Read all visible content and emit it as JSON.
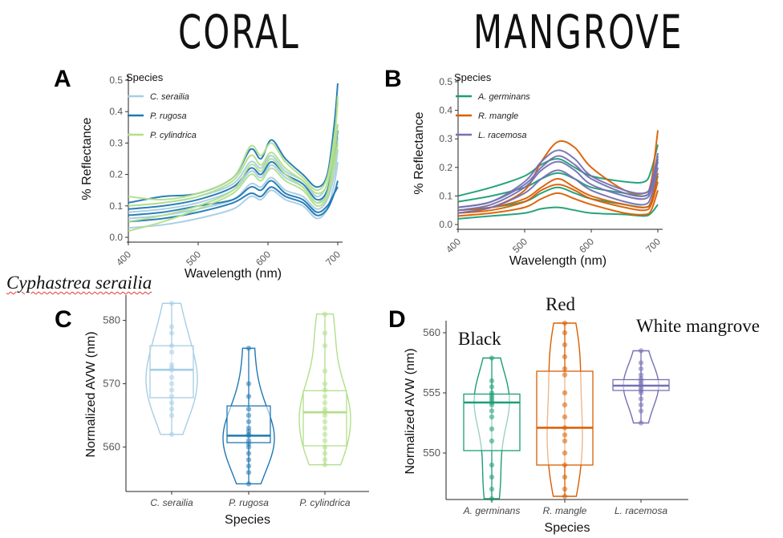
{
  "headings": {
    "coral": "CORAL",
    "mangrove": "MANGROVE"
  },
  "annotations": {
    "species_name": "Cyphastrea serailia",
    "black": "Black",
    "red": "Red",
    "white_mangrove": "White mangrove"
  },
  "chart_data": [
    {
      "id": "A",
      "panel_label": "A",
      "type": "line",
      "title": "",
      "xlabel": "Wavelength (nm)",
      "ylabel": "% Reflectance",
      "xlim": [
        400,
        700
      ],
      "ylim": [
        0,
        0.5
      ],
      "x_ticks": [
        "400",
        "500",
        "600",
        "700"
      ],
      "y_ticks": [
        "0.0",
        "0.1",
        "0.2",
        "0.3",
        "0.4",
        "0.5"
      ],
      "legend_title": "Species",
      "legend_position": "top-left",
      "x": [
        400,
        450,
        500,
        550,
        575,
        590,
        605,
        625,
        650,
        670,
        685,
        695,
        700
      ],
      "series": [
        {
          "name": "C. serailia",
          "color": "#a6cee3",
          "values": [
            0.06,
            0.07,
            0.09,
            0.12,
            0.17,
            0.16,
            0.19,
            0.15,
            0.13,
            0.09,
            0.12,
            0.2,
            0.28
          ]
        },
        {
          "name": "C. serailia",
          "color": "#a6cee3",
          "values": [
            0.03,
            0.04,
            0.06,
            0.09,
            0.13,
            0.12,
            0.15,
            0.12,
            0.1,
            0.06,
            0.09,
            0.17,
            0.24
          ]
        },
        {
          "name": "C. serailia",
          "color": "#a6cee3",
          "values": [
            0.1,
            0.11,
            0.13,
            0.17,
            0.24,
            0.22,
            0.26,
            0.21,
            0.18,
            0.13,
            0.17,
            0.28,
            0.36
          ]
        },
        {
          "name": "C. serailia",
          "color": "#a6cee3",
          "values": [
            0.08,
            0.09,
            0.11,
            0.15,
            0.21,
            0.19,
            0.23,
            0.19,
            0.16,
            0.11,
            0.15,
            0.24,
            0.32
          ]
        },
        {
          "name": "P. rugosa",
          "color": "#1f78b4",
          "values": [
            0.07,
            0.08,
            0.1,
            0.12,
            0.16,
            0.15,
            0.18,
            0.14,
            0.12,
            0.08,
            0.1,
            0.14,
            0.16
          ]
        },
        {
          "name": "P. rugosa",
          "color": "#1f78b4",
          "values": [
            0.11,
            0.13,
            0.14,
            0.19,
            0.28,
            0.25,
            0.31,
            0.25,
            0.2,
            0.16,
            0.2,
            0.36,
            0.49
          ]
        },
        {
          "name": "P. rugosa",
          "color": "#1f78b4",
          "values": [
            0.05,
            0.06,
            0.08,
            0.11,
            0.14,
            0.13,
            0.16,
            0.13,
            0.11,
            0.07,
            0.09,
            0.14,
            0.18
          ]
        },
        {
          "name": "P. rugosa",
          "color": "#1f78b4",
          "values": [
            0.09,
            0.1,
            0.12,
            0.16,
            0.22,
            0.2,
            0.24,
            0.2,
            0.17,
            0.12,
            0.15,
            0.26,
            0.34
          ]
        },
        {
          "name": "P. cylindrica",
          "color": "#b2df8a",
          "values": [
            0.13,
            0.12,
            0.14,
            0.19,
            0.29,
            0.26,
            0.3,
            0.24,
            0.19,
            0.15,
            0.19,
            0.32,
            0.43
          ]
        },
        {
          "name": "P. cylindrica",
          "color": "#b2df8a",
          "values": [
            0.02,
            0.05,
            0.09,
            0.14,
            0.2,
            0.18,
            0.22,
            0.18,
            0.15,
            0.1,
            0.13,
            0.23,
            0.3
          ]
        },
        {
          "name": "P. cylindrica",
          "color": "#b2df8a",
          "values": [
            0.1,
            0.11,
            0.13,
            0.18,
            0.26,
            0.23,
            0.27,
            0.22,
            0.18,
            0.14,
            0.17,
            0.3,
            0.45
          ]
        },
        {
          "name": "P. cylindrica",
          "color": "#b2df8a",
          "values": [
            0.05,
            0.07,
            0.1,
            0.15,
            0.23,
            0.21,
            0.25,
            0.2,
            0.16,
            0.11,
            0.14,
            0.26,
            0.36
          ]
        }
      ],
      "legend": [
        {
          "name": "C. serailia",
          "color": "#a6cee3"
        },
        {
          "name": "P. rugosa",
          "color": "#1f78b4"
        },
        {
          "name": "P. cylindrica",
          "color": "#b2df8a"
        }
      ]
    },
    {
      "id": "B",
      "panel_label": "B",
      "type": "line",
      "title": "",
      "xlabel": "Wavelength (nm)",
      "ylabel": "% Reflectance",
      "xlim": [
        400,
        700
      ],
      "ylim": [
        0,
        0.5
      ],
      "x_ticks": [
        "400",
        "500",
        "600",
        "700"
      ],
      "y_ticks": [
        "0.0",
        "0.1",
        "0.2",
        "0.3",
        "0.4",
        "0.5"
      ],
      "legend_title": "Species",
      "legend_position": "top-left",
      "x": [
        400,
        450,
        500,
        525,
        550,
        575,
        600,
        650,
        680,
        690,
        700
      ],
      "series": [
        {
          "name": "A. germinans",
          "color": "#1b9e77",
          "values": [
            0.1,
            0.13,
            0.17,
            0.21,
            0.23,
            0.2,
            0.17,
            0.15,
            0.15,
            0.19,
            0.28
          ]
        },
        {
          "name": "A. germinans",
          "color": "#1b9e77",
          "values": [
            0.08,
            0.1,
            0.13,
            0.16,
            0.18,
            0.16,
            0.13,
            0.11,
            0.1,
            0.13,
            0.23
          ]
        },
        {
          "name": "A. germinans",
          "color": "#1b9e77",
          "values": [
            0.05,
            0.06,
            0.08,
            0.11,
            0.13,
            0.11,
            0.09,
            0.07,
            0.06,
            0.08,
            0.17
          ]
        },
        {
          "name": "A. germinans",
          "color": "#1b9e77",
          "values": [
            0.02,
            0.03,
            0.04,
            0.055,
            0.06,
            0.05,
            0.04,
            0.035,
            0.03,
            0.04,
            0.07
          ]
        },
        {
          "name": "R. mangle",
          "color": "#d95f02",
          "values": [
            0.04,
            0.06,
            0.12,
            0.22,
            0.29,
            0.27,
            0.2,
            0.12,
            0.11,
            0.15,
            0.33
          ]
        },
        {
          "name": "R. mangle",
          "color": "#d95f02",
          "values": [
            0.04,
            0.05,
            0.08,
            0.12,
            0.14,
            0.12,
            0.09,
            0.06,
            0.05,
            0.07,
            0.15
          ]
        },
        {
          "name": "R. mangle",
          "color": "#d95f02",
          "values": [
            0.03,
            0.04,
            0.06,
            0.09,
            0.11,
            0.09,
            0.07,
            0.04,
            0.035,
            0.05,
            0.12
          ]
        },
        {
          "name": "R. mangle",
          "color": "#d95f02",
          "values": [
            0.05,
            0.06,
            0.09,
            0.13,
            0.16,
            0.13,
            0.1,
            0.07,
            0.06,
            0.08,
            0.18
          ]
        },
        {
          "name": "L. racemosa",
          "color": "#7570b3",
          "values": [
            0.06,
            0.08,
            0.15,
            0.22,
            0.26,
            0.23,
            0.17,
            0.12,
            0.11,
            0.14,
            0.25
          ]
        },
        {
          "name": "L. racemosa",
          "color": "#7570b3",
          "values": [
            0.05,
            0.07,
            0.13,
            0.19,
            0.22,
            0.19,
            0.14,
            0.1,
            0.09,
            0.12,
            0.22
          ]
        },
        {
          "name": "L. racemosa",
          "color": "#7570b3",
          "values": [
            0.04,
            0.06,
            0.11,
            0.16,
            0.19,
            0.16,
            0.12,
            0.08,
            0.07,
            0.1,
            0.2
          ]
        },
        {
          "name": "L. racemosa",
          "color": "#7570b3",
          "values": [
            0.06,
            0.08,
            0.14,
            0.2,
            0.24,
            0.21,
            0.16,
            0.11,
            0.1,
            0.13,
            0.24
          ]
        }
      ],
      "legend": [
        {
          "name": "A. germinans",
          "color": "#1b9e77"
        },
        {
          "name": "R. mangle",
          "color": "#d95f02"
        },
        {
          "name": "L. racemosa",
          "color": "#7570b3"
        }
      ]
    },
    {
      "id": "C",
      "panel_label": "C",
      "type": "violin-box",
      "title": "",
      "xlabel": "Species",
      "ylabel": "Normalized AVW (nm)",
      "ylim": [
        554,
        584
      ],
      "y_ticks": [
        "560",
        "570",
        "580"
      ],
      "y_tick_values": [
        560,
        570,
        580
      ],
      "categories": [
        "C. serailia",
        "P. rugosa",
        "P. cylindrica"
      ],
      "groups": [
        {
          "name": "C. serailia",
          "color": "#a6cee3",
          "min": 562,
          "q1": 567.8,
          "median": 572.2,
          "q3": 576,
          "max": 582.7,
          "points": [
            582.7,
            579,
            578,
            576,
            575,
            573,
            572.5,
            572.2,
            571,
            570,
            569,
            568,
            567,
            566,
            565,
            562
          ]
        },
        {
          "name": "P. rugosa",
          "color": "#1f78b4",
          "min": 554.2,
          "q1": 560.7,
          "median": 561.8,
          "q3": 566.5,
          "max": 575.6,
          "points": [
            575.6,
            570,
            568,
            566,
            565,
            564,
            563,
            562.5,
            562,
            561.8,
            561,
            560.5,
            560,
            559,
            558,
            557,
            556,
            554.2
          ]
        },
        {
          "name": "P. cylindrica",
          "color": "#b2df8a",
          "min": 557.2,
          "q1": 560.2,
          "median": 565.5,
          "q3": 568.9,
          "max": 581,
          "points": [
            581,
            578,
            576,
            572,
            570,
            569,
            568,
            567,
            566,
            565.5,
            565,
            564,
            563,
            562,
            561,
            560,
            559,
            558,
            557.2
          ]
        }
      ]
    },
    {
      "id": "D",
      "panel_label": "D",
      "type": "violin-box",
      "title": "",
      "xlabel": "Species",
      "ylabel": "Normalized AVW (nm)",
      "ylim": [
        546,
        561
      ],
      "y_ticks": [
        "550",
        "555",
        "560"
      ],
      "y_tick_values": [
        550,
        555,
        560
      ],
      "categories": [
        "A. germinans",
        "R. mangle",
        "L. racemosa"
      ],
      "groups": [
        {
          "name": "A. germinans",
          "color": "#1b9e77",
          "min": 546.2,
          "q1": 550.2,
          "median": 554.2,
          "q3": 554.9,
          "max": 557.9,
          "points": [
            557.9,
            556,
            555.5,
            555,
            554.8,
            554.6,
            554.4,
            554.2,
            554,
            553.5,
            553,
            552,
            551,
            549,
            548,
            547,
            546.2
          ]
        },
        {
          "name": "R. mangle",
          "color": "#d95f02",
          "min": 546.4,
          "q1": 549,
          "median": 552.1,
          "q3": 556.8,
          "max": 560.8,
          "points": [
            560.8,
            560,
            559,
            558,
            557,
            556.5,
            555,
            554,
            553,
            552.1,
            551.5,
            551,
            550,
            549,
            548,
            547,
            546.4
          ]
        },
        {
          "name": "L. racemosa",
          "color": "#7570b3",
          "min": 552.5,
          "q1": 555.2,
          "median": 555.6,
          "q3": 556.1,
          "max": 558.5,
          "points": [
            558.5,
            557.5,
            557,
            556.5,
            556.2,
            556,
            555.8,
            555.6,
            555.4,
            555.2,
            555,
            554.5,
            554,
            553.5,
            552.5
          ]
        }
      ]
    }
  ]
}
